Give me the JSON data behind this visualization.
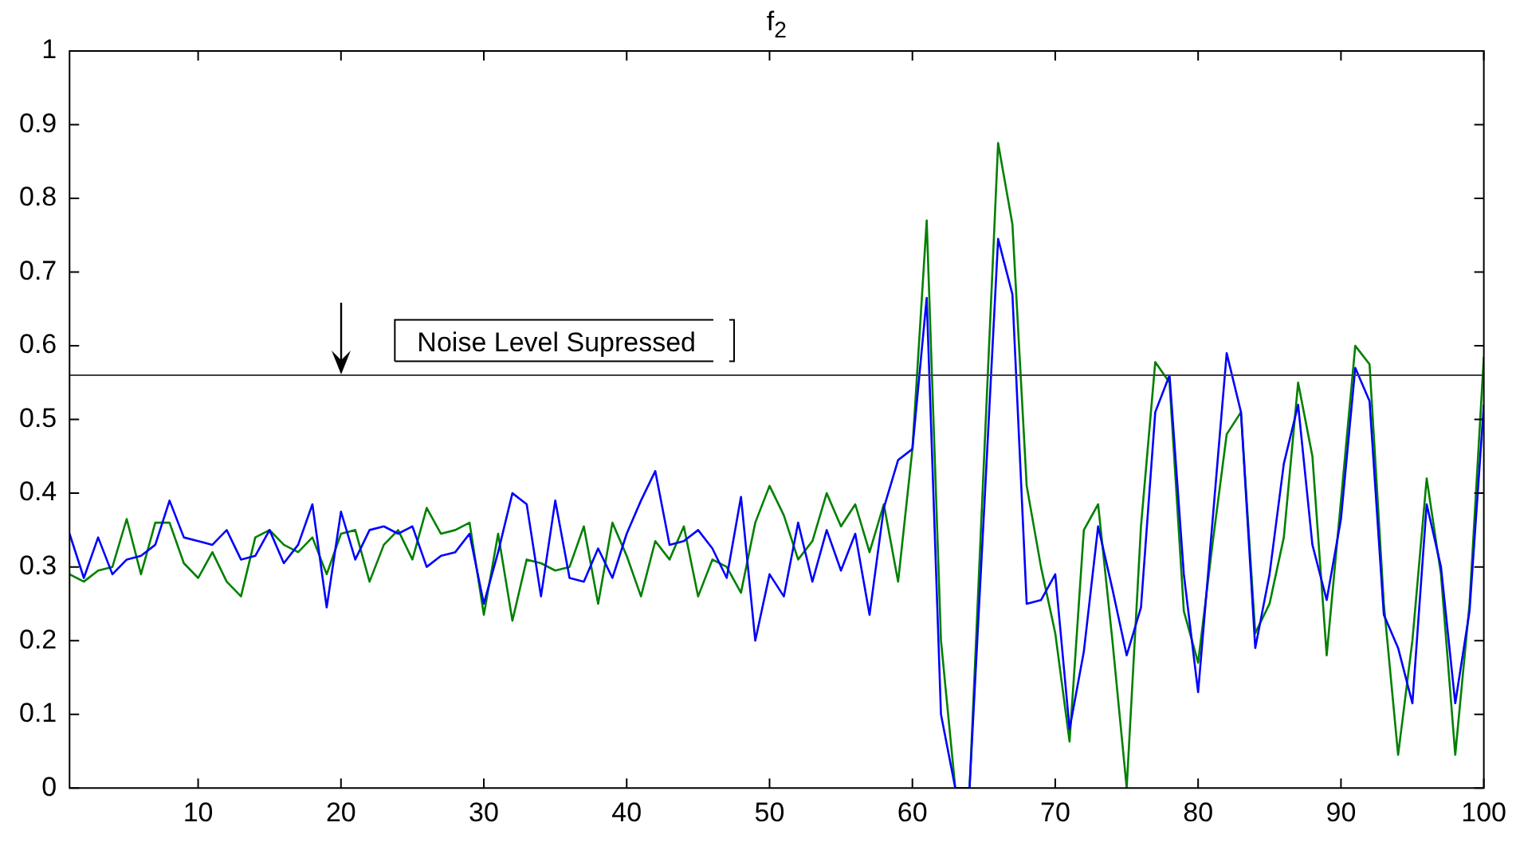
{
  "chart_data": {
    "type": "line",
    "title": "f$_{2}$",
    "x": [
      1,
      2,
      3,
      4,
      5,
      6,
      7,
      8,
      9,
      10,
      11,
      12,
      13,
      14,
      15,
      16,
      17,
      18,
      19,
      20,
      21,
      22,
      23,
      24,
      25,
      26,
      27,
      28,
      29,
      30,
      31,
      32,
      33,
      34,
      35,
      36,
      37,
      38,
      39,
      40,
      41,
      42,
      43,
      44,
      45,
      46,
      47,
      48,
      49,
      50,
      51,
      52,
      53,
      54,
      55,
      56,
      57,
      58,
      59,
      60,
      61,
      62,
      63,
      64,
      65,
      66,
      67,
      68,
      69,
      70,
      71,
      72,
      73,
      74,
      75,
      76,
      77,
      78,
      79,
      80,
      81,
      82,
      83,
      84,
      85,
      86,
      87,
      88,
      89,
      90,
      91,
      92,
      93,
      94,
      95,
      96,
      97,
      98,
      99,
      100
    ],
    "series": [
      {
        "color": "#0000ff",
        "values": [
          0.345,
          0.285,
          0.34,
          0.29,
          0.31,
          0.315,
          0.33,
          0.39,
          0.34,
          0.335,
          0.33,
          0.35,
          0.31,
          0.315,
          0.35,
          0.305,
          0.33,
          0.385,
          0.245,
          0.375,
          0.31,
          0.35,
          0.355,
          0.345,
          0.355,
          0.3,
          0.315,
          0.32,
          0.345,
          0.25,
          0.32,
          0.4,
          0.385,
          0.26,
          0.39,
          0.285,
          0.28,
          0.325,
          0.285,
          0.345,
          0.39,
          0.43,
          0.33,
          0.335,
          0.35,
          0.325,
          0.285,
          0.395,
          0.2,
          0.29,
          0.26,
          0.36,
          0.28,
          0.35,
          0.295,
          0.345,
          0.235,
          0.38,
          0.445,
          0.46,
          0.665,
          0.1,
          0,
          0,
          0.37,
          0.745,
          0.67,
          0.25,
          0.255,
          0.29,
          0.08,
          0.185,
          0.355,
          0.27,
          0.18,
          0.245,
          0.51,
          0.56,
          0.29,
          0.13,
          0.36,
          0.59,
          0.51,
          0.19,
          0.29,
          0.44,
          0.52,
          0.33,
          0.255,
          0.365,
          0.57,
          0.525,
          0.235,
          0.19,
          0.115,
          0.385,
          0.3,
          0.115,
          0.24,
          0.52
        ]
      },
      {
        "color": "#008000",
        "values": [
          0.29,
          0.28,
          0.295,
          0.3,
          0.365,
          0.29,
          0.36,
          0.36,
          0.305,
          0.285,
          0.32,
          0.28,
          0.26,
          0.34,
          0.35,
          0.33,
          0.32,
          0.34,
          0.29,
          0.345,
          0.35,
          0.28,
          0.33,
          0.35,
          0.31,
          0.38,
          0.345,
          0.35,
          0.36,
          0.235,
          0.345,
          0.227,
          0.31,
          0.305,
          0.295,
          0.3,
          0.355,
          0.25,
          0.36,
          0.315,
          0.26,
          0.335,
          0.31,
          0.355,
          0.26,
          0.31,
          0.3,
          0.265,
          0.36,
          0.41,
          0.37,
          0.31,
          0.335,
          0.4,
          0.355,
          0.385,
          0.32,
          0.385,
          0.28,
          0.46,
          0.77,
          0.2,
          0,
          0,
          0.44,
          0.875,
          0.765,
          0.41,
          0.3,
          0.21,
          0.063,
          0.35,
          0.385,
          0.2,
          0,
          0.355,
          0.578,
          0.55,
          0.24,
          0.17,
          0.33,
          0.48,
          0.51,
          0.21,
          0.25,
          0.34,
          0.55,
          0.45,
          0.18,
          0.39,
          0.6,
          0.575,
          0.25,
          0.045,
          0.2,
          0.42,
          0.29,
          0.045,
          0.25,
          0.585
        ]
      }
    ],
    "xlim": [
      1,
      100
    ],
    "xticks": [
      10,
      20,
      30,
      40,
      50,
      60,
      70,
      80,
      90,
      100
    ],
    "ylim": [
      0,
      1
    ],
    "yticks": [
      0,
      0.1,
      0.2,
      0.3,
      0.4,
      0.5,
      0.6,
      0.7,
      0.8,
      0.9,
      1
    ],
    "ref_lines": [
      {
        "axis": "y",
        "value": 0.56,
        "color": "#404040"
      }
    ],
    "annotations": [
      "Noise Level Supressed"
    ],
    "grid": false,
    "legend": false,
    "marker": "none",
    "line_style": "solid"
  }
}
